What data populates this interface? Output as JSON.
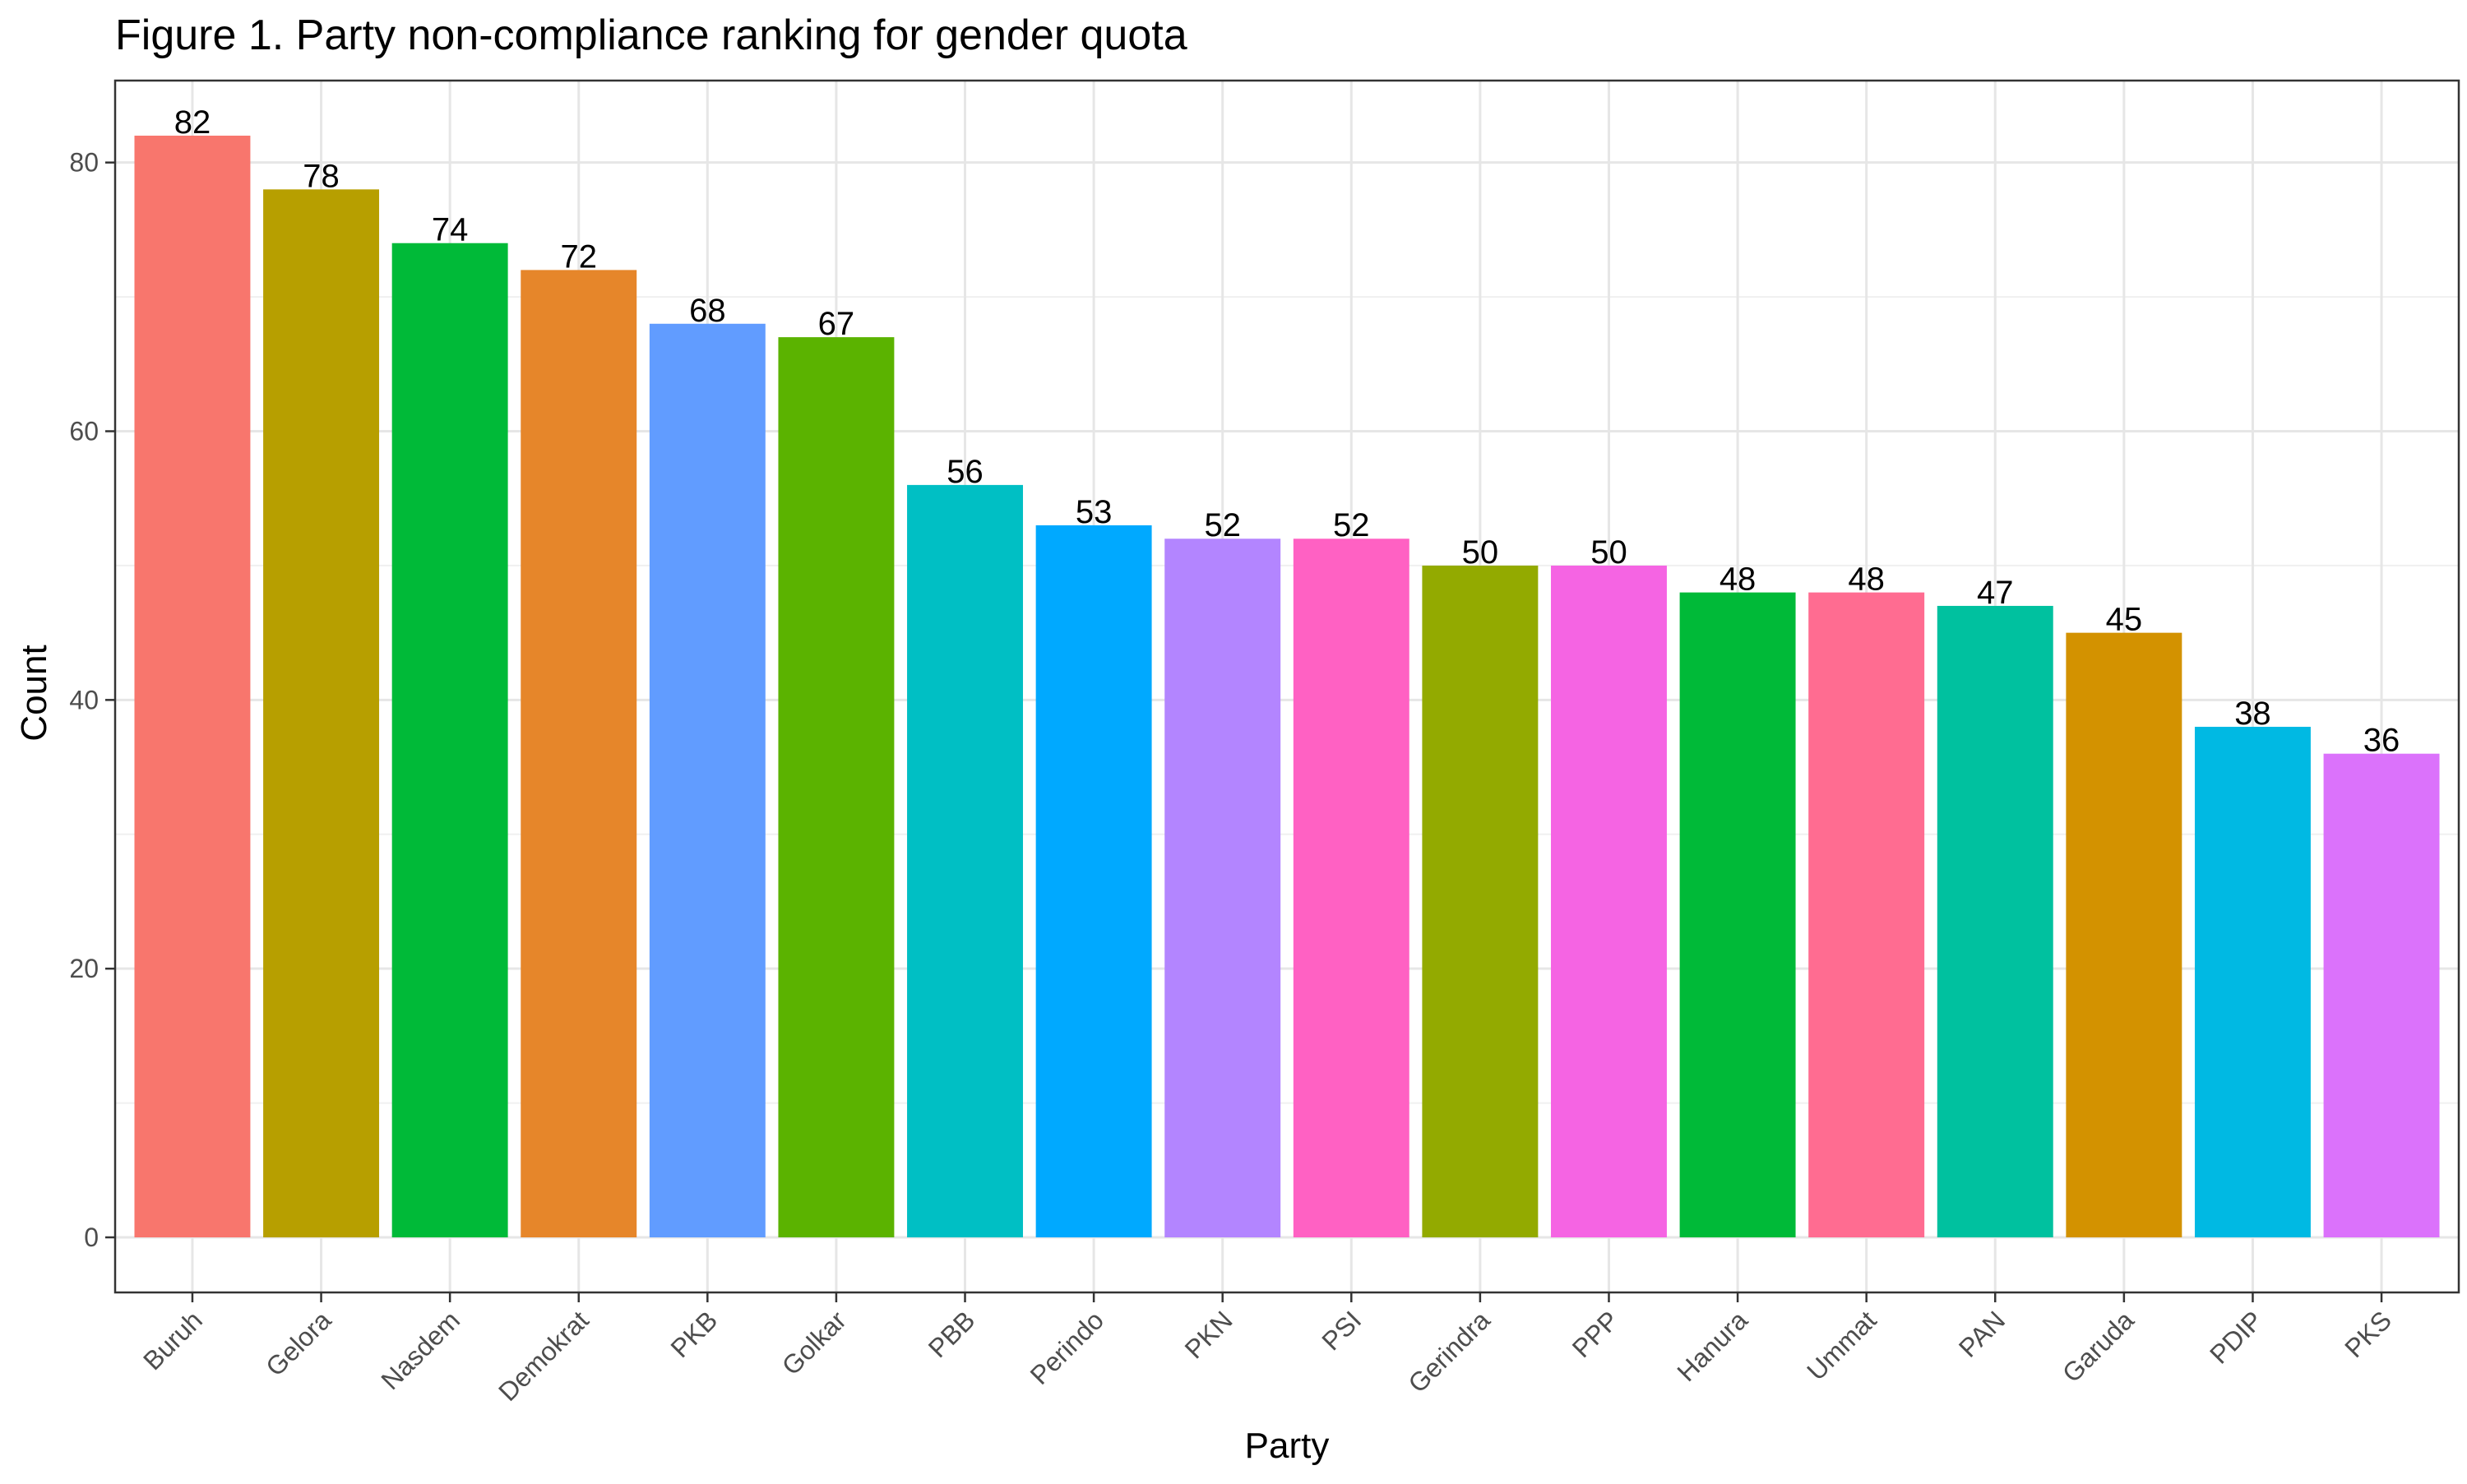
{
  "chart_data": {
    "type": "bar",
    "title": "Figure 1. Party non-compliance ranking for gender quota",
    "xlabel": "Party",
    "ylabel": "Count",
    "ylim": [
      -4.1,
      86.1
    ],
    "yticks": [
      0,
      20,
      40,
      60,
      80
    ],
    "grid": true,
    "legend": "none",
    "categories": [
      "Buruh",
      "Gelora",
      "Nasdem",
      "Demokrat",
      "PKB",
      "Golkar",
      "PBB",
      "Perindo",
      "PKN",
      "PSI",
      "Gerindra",
      "PPP",
      "Hanura",
      "Ummat",
      "PAN",
      "Garuda",
      "PDIP",
      "PKS"
    ],
    "values": [
      82,
      78,
      74,
      72,
      68,
      67,
      56,
      53,
      52,
      52,
      50,
      50,
      48,
      48,
      47,
      45,
      38,
      36
    ],
    "colors": [
      "#F8766D",
      "#B79F00",
      "#00BA38",
      "#E6862A",
      "#619CFF",
      "#5BB300",
      "#00BFC4",
      "#00A9FF",
      "#B385FF",
      "#FF61C3",
      "#93AA00",
      "#F564E3",
      "#00BA38",
      "#FF6C91",
      "#00C19F",
      "#D39200",
      "#00B9E3",
      "#DB72FB"
    ]
  }
}
